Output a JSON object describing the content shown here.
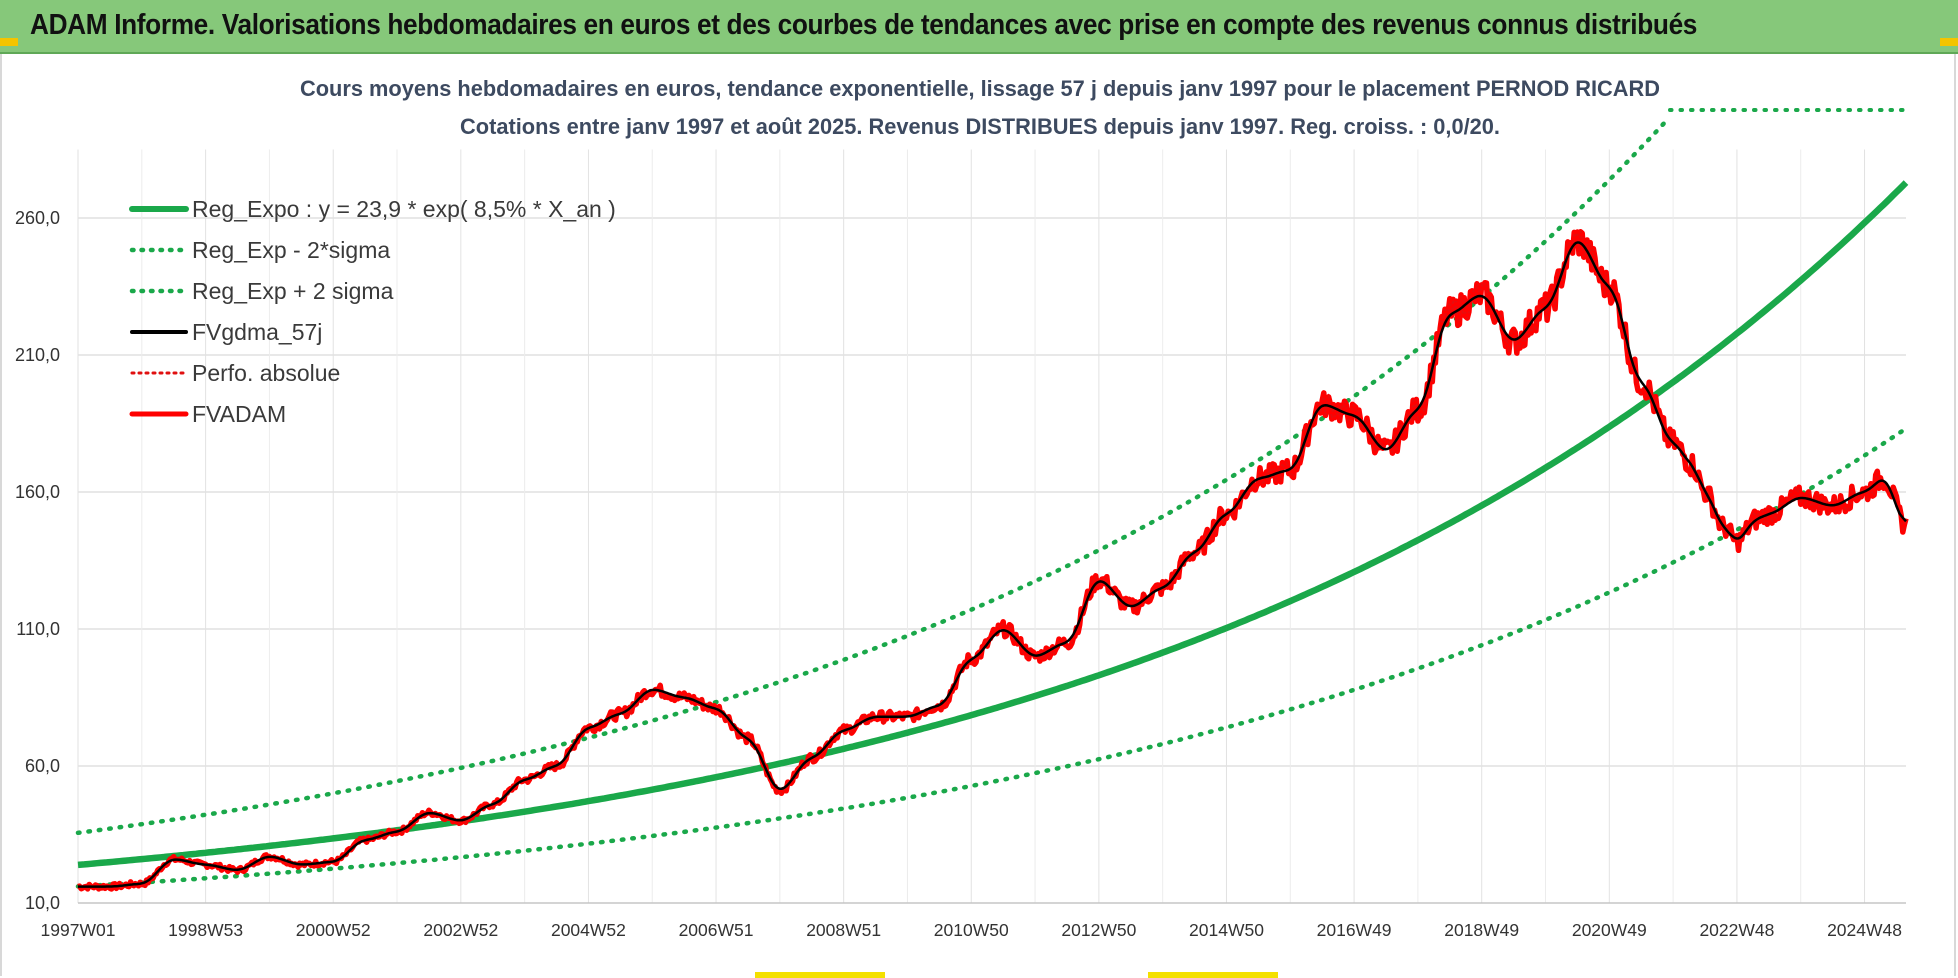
{
  "header": {
    "title": "ADAM Informe. Valorisations hebdomadaires en euros et des courbes de tendances avec prise en compte des revenus connus distribués"
  },
  "chart_data": {
    "type": "line",
    "title_lines": [
      "Cours moyens hebdomadaires en euros, tendance exponentielle, lissage 57 j depuis janv 1997 pour le placement PERNOD RICARD",
      "Cotations entre janv 1997 et août 2025. Revenus DISTRIBUES depuis janv 1997. Reg. croiss. : 0,0/20."
    ],
    "x_unit": "years since 1997W01",
    "x_range": [
      0,
      28.65
    ],
    "x_tick_positions": [
      0,
      2,
      4,
      6,
      8,
      10,
      12,
      14,
      16,
      18,
      20,
      22,
      24,
      26,
      28
    ],
    "x_tick_labels": [
      "1997W01",
      "1998W53",
      "2000W52",
      "2002W52",
      "2004W52",
      "2006W51",
      "2008W51",
      "2010W50",
      "2012W50",
      "2014W50",
      "2016W49",
      "2018W49",
      "2020W49",
      "2022W48",
      "2024W48"
    ],
    "y_ticks": [
      10,
      60,
      110,
      160,
      210,
      260
    ],
    "y_tick_labels": [
      "10,0",
      "60,0",
      "110,0",
      "160,0",
      "210,0",
      "260,0"
    ],
    "ylim": [
      10,
      285
    ],
    "grid": true,
    "legend_position": "top-left",
    "regression": {
      "a": 23.9,
      "rate": 0.085,
      "sigma_factor": 1.49
    },
    "colors": {
      "reg": "#1aa84a",
      "fvgdma": "#000000",
      "perfo": "#e01010",
      "fvadam": "#ff0000",
      "header": "#86c87a"
    },
    "series": [
      {
        "name": "Reg_Expo : y = 23,9 * exp( 8,5% *  X_an )",
        "kind": "reg_expo"
      },
      {
        "name": "Reg_Exp - 2*sigma",
        "kind": "reg_minus"
      },
      {
        "name": "Reg_Exp + 2 sigma",
        "kind": "reg_plus"
      },
      {
        "name": "FVgdma_57j",
        "kind": "fvgdma"
      },
      {
        "name": "Perfo. absolue",
        "kind": "perfo"
      },
      {
        "name": "FVADAM",
        "kind": "fvadam",
        "x": [
          0,
          0.5,
          1.0,
          1.5,
          2.0,
          2.5,
          3.0,
          3.5,
          4.0,
          4.5,
          5.0,
          5.5,
          6.0,
          6.5,
          7.0,
          7.5,
          8.0,
          8.5,
          9.0,
          9.5,
          10.0,
          10.5,
          11.0,
          11.5,
          12.0,
          12.5,
          13.0,
          13.5,
          14.0,
          14.5,
          15.0,
          15.5,
          16.0,
          16.5,
          17.0,
          17.5,
          18.0,
          18.5,
          19.0,
          19.5,
          20.0,
          20.5,
          21.0,
          21.5,
          22.0,
          22.5,
          23.0,
          23.5,
          24.0,
          24.5,
          25.0,
          25.3,
          25.5,
          25.8,
          26.0,
          26.3,
          26.5,
          27.0,
          27.5,
          28.0,
          28.3,
          28.65
        ],
        "y": [
          16,
          16,
          17,
          26,
          24,
          22,
          27,
          24,
          25,
          33,
          36,
          43,
          40,
          46,
          55,
          60,
          74,
          79,
          88,
          85,
          81,
          70,
          51,
          63,
          73,
          78,
          78,
          82,
          99,
          110,
          100,
          105,
          128,
          118,
          125,
          138,
          152,
          165,
          168,
          192,
          188,
          175,
          190,
          225,
          232,
          215,
          227,
          252,
          235,
          200,
          178,
          170,
          160,
          147,
          142,
          150,
          152,
          158,
          155,
          160,
          165,
          148
        ]
      }
    ]
  }
}
